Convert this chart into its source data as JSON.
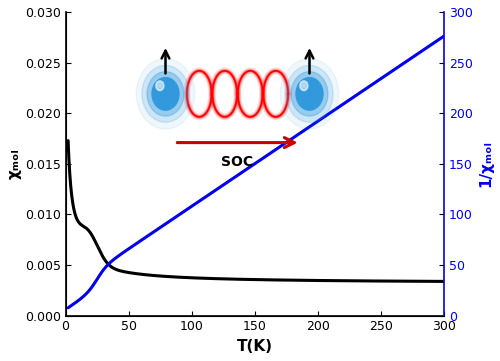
{
  "xlabel": "T(K)",
  "ylabel_left": "χₘₒₗ",
  "ylabel_right": "1/χₘₒₗ",
  "xlim": [
    0,
    300
  ],
  "ylim_left": [
    0.0,
    0.03
  ],
  "ylim_right": [
    0,
    300
  ],
  "xticks": [
    0,
    50,
    100,
    150,
    200,
    250,
    300
  ],
  "yticks_left": [
    0.0,
    0.005,
    0.01,
    0.015,
    0.02,
    0.025,
    0.03
  ],
  "yticks_right": [
    0,
    50,
    100,
    150,
    200,
    250,
    300
  ],
  "line_black_color": "#000000",
  "line_blue_color": "#0000EE",
  "background_color": "#ffffff",
  "soc_label": "SOC",
  "figsize": [
    5.0,
    3.61
  ],
  "dpi": 100
}
